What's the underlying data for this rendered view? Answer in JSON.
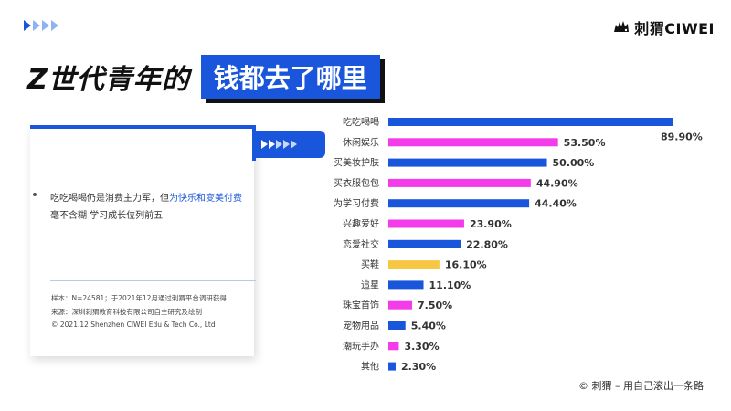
{
  "brand": {
    "name": "刺猬CIWEI"
  },
  "title": {
    "part1": "Z世代青年的",
    "part2": "钱都去了哪里"
  },
  "card": {
    "bullet_prefix": "吃吃喝喝仍是消费主力军，但",
    "bullet_highlight": "为快乐和变美付费",
    "bullet_line2": "毫不含糊  学习成长位列前五",
    "notes": [
      "样本：N=24581；于2021年12月通过刺猬平台调研获得",
      "来源：深圳刺猬教育科技有限公司自主研究及绘制",
      "© 2021.12  Shenzhen CIWEI Edu & Tech Co., Ltd"
    ]
  },
  "footer": "© 刺猬 – 用自己滚出一条路",
  "colors": {
    "blue": "#1a56db",
    "pink": "#f43bea",
    "yellow": "#f5c742"
  },
  "chart_data": {
    "type": "bar",
    "orientation": "horizontal",
    "categories": [
      "吃吃喝喝",
      "休闲娱乐",
      "买美妆护肤",
      "买衣服包包",
      "为学习付费",
      "兴趣爱好",
      "恋爱社交",
      "买鞋",
      "追星",
      "珠宝首饰",
      "宠物用品",
      "潮玩手办",
      "其他"
    ],
    "values": [
      89.9,
      53.5,
      50.0,
      44.9,
      44.4,
      23.9,
      22.8,
      16.1,
      11.1,
      7.5,
      5.4,
      3.3,
      2.3
    ],
    "labels": [
      "89.90%",
      "53.50%",
      "50.00%",
      "44.90%",
      "44.40%",
      "23.90%",
      "22.80%",
      "16.10%",
      "11.10%",
      "7.50%",
      "5.40%",
      "3.30%",
      "2.30%"
    ],
    "bar_colors": [
      "#1a56db",
      "#f43bea",
      "#1a56db",
      "#f43bea",
      "#1a56db",
      "#f43bea",
      "#1a56db",
      "#f5c742",
      "#1a56db",
      "#f43bea",
      "#1a56db",
      "#f43bea",
      "#1a56db"
    ],
    "xlim": [
      0,
      100
    ],
    "grid": false,
    "legend": "none"
  }
}
